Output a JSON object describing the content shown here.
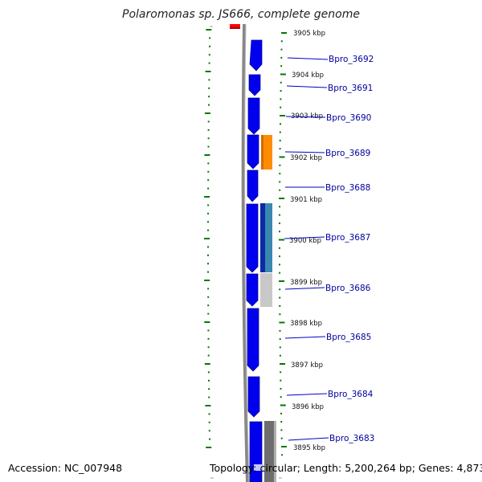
{
  "title": "Polaromonas sp. JS666, complete genome",
  "footer": {
    "accession": "Accession: NC_007948",
    "summary": "Topology: circular; Length: 5,200,264 bp; Genes: 4,873"
  },
  "colors": {
    "gene_forward": "#0000ee",
    "label": "#00009c",
    "tick": "#007a00",
    "backbone": "#808080",
    "feature_red": "#ff0000",
    "feature_orange": "#ff8c00",
    "feature_teal": "#3a88b0",
    "feature_lightgray": "#c8c8c8",
    "feature_darkgray": "#6e6e6e"
  },
  "kbp_labels": [
    "3905 kbp",
    "3904 kbp",
    "3903 kbp",
    "3902 kbp",
    "3901 kbp",
    "3900 kbp",
    "3899 kbp",
    "3898 kbp",
    "3897 kbp",
    "3896 kbp",
    "3895 kbp"
  ],
  "genes": [
    "Bpro_3692",
    "Bpro_3691",
    "Bpro_3690",
    "Bpro_3689",
    "Bpro_3688",
    "Bpro_3687",
    "Bpro_3686",
    "Bpro_3685",
    "Bpro_3684",
    "Bpro_3683"
  ]
}
